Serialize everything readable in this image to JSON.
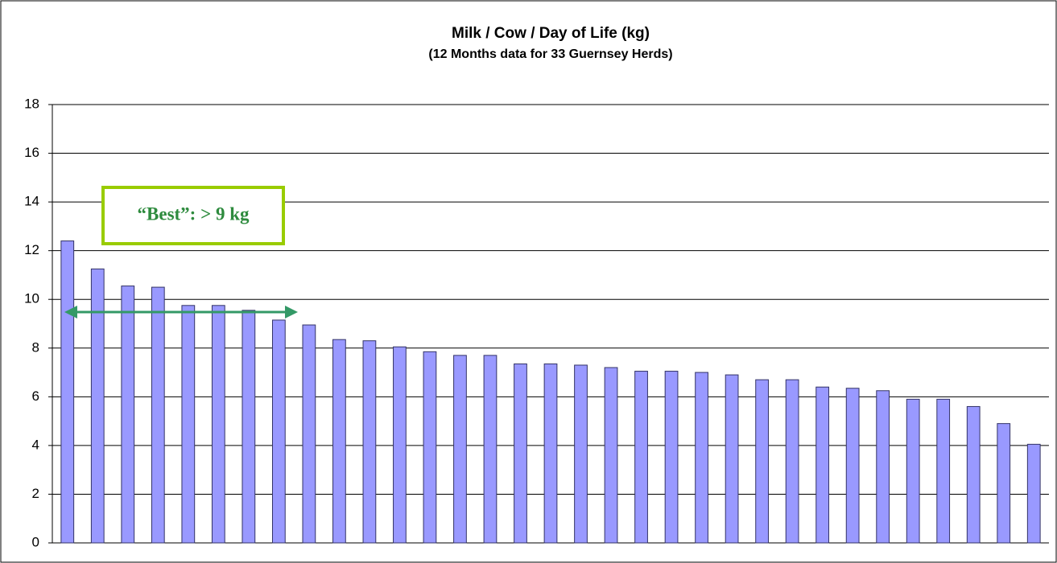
{
  "chart_data": {
    "type": "bar",
    "title": "Milk / Cow / Day of Life (kg)",
    "subtitle": "(12 Months data for 33 Guernsey Herds)",
    "annotation": "“Best”: > 9 kg",
    "categories": [
      null,
      null,
      null,
      null,
      null,
      null,
      null,
      null,
      null,
      null,
      null,
      null,
      null,
      null,
      null,
      null,
      null,
      null,
      null,
      null,
      null,
      null,
      null,
      null,
      null,
      null,
      null,
      null,
      null,
      null,
      null,
      null,
      null
    ],
    "values": [
      12.4,
      11.25,
      10.55,
      10.5,
      9.75,
      9.75,
      9.55,
      9.15,
      8.95,
      8.35,
      8.3,
      8.05,
      7.85,
      7.7,
      7.7,
      7.35,
      7.35,
      7.3,
      7.2,
      7.05,
      7.05,
      7.0,
      6.9,
      6.7,
      6.7,
      6.4,
      6.35,
      6.25,
      5.9,
      5.9,
      5.6,
      4.9,
      4.05
    ],
    "color": "#9999ff",
    "ylim": [
      0,
      18
    ],
    "yticks": [
      0,
      2,
      4,
      6,
      8,
      10,
      12,
      14,
      16,
      18
    ],
    "grid": true
  }
}
